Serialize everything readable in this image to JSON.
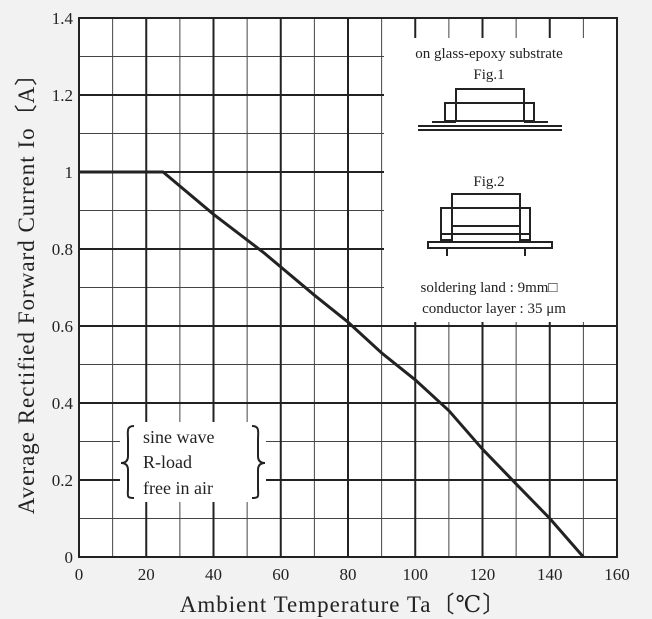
{
  "chart_data": {
    "type": "line",
    "xlabel": "Ambient Temperature Ta〔℃〕",
    "ylabel": "Average Rectified Forward Current Io〔A〕",
    "xlim": [
      0,
      160
    ],
    "ylim": [
      0,
      1.4
    ],
    "x_major_ticks": [
      0,
      20,
      40,
      60,
      80,
      100,
      120,
      140,
      160
    ],
    "y_major_ticks": [
      0,
      0.2,
      0.4,
      0.6,
      0.8,
      1,
      1.2,
      1.4
    ],
    "x_tick_labels": [
      "0",
      "20",
      "40",
      "60",
      "80",
      "100",
      "120",
      "140",
      "160"
    ],
    "y_tick_labels": [
      "0",
      "0.2",
      "0.4",
      "0.6",
      "0.8",
      "1",
      "1.2",
      "1.4"
    ],
    "x_minor_step": 10,
    "y_minor_step": 0.1,
    "grid": true,
    "series": [
      {
        "x": [
          0,
          25,
          40,
          55,
          70,
          80,
          90,
          100,
          110,
          120,
          130,
          140,
          150
        ],
        "y": [
          1.0,
          1.0,
          0.89,
          0.79,
          0.68,
          0.61,
          0.53,
          0.46,
          0.38,
          0.28,
          0.19,
          0.1,
          0.0
        ],
        "color": "#222222"
      }
    ],
    "annotations": {
      "conditions": [
        "sine wave",
        "R-load",
        "free in air"
      ],
      "inset_title": "on glass-epoxy substrate",
      "fig1_label": "Fig.1",
      "fig2_label": "Fig.2",
      "inset_note_1": "soldering land : 9mm□",
      "inset_note_2": "conductor layer : 35 μm"
    }
  }
}
